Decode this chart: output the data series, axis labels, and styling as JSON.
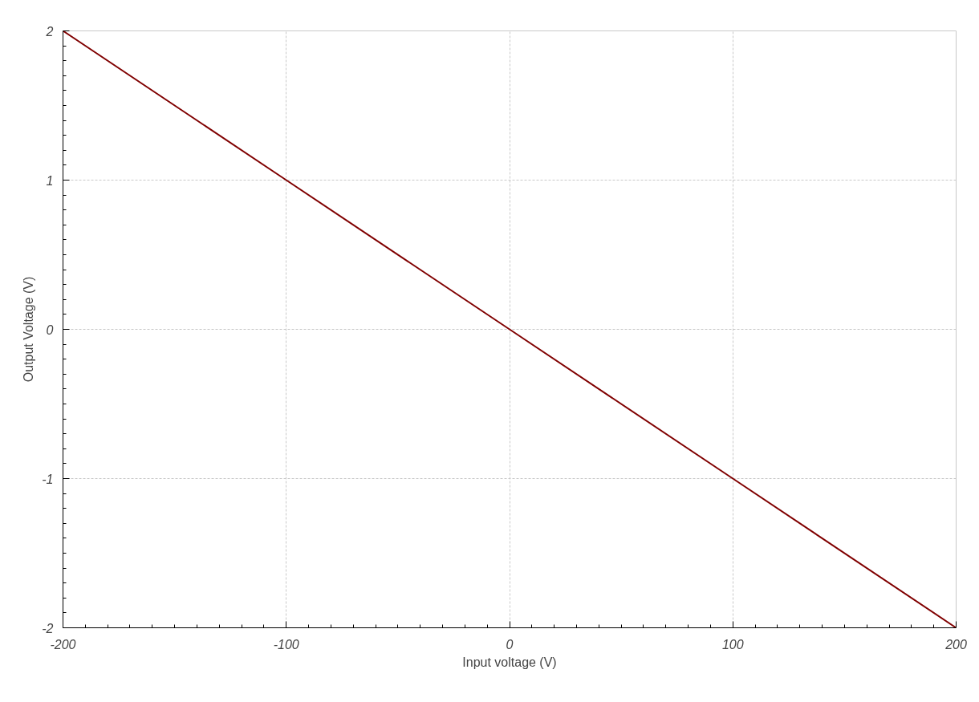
{
  "chart_data": {
    "type": "line",
    "xlabel": "Input voltage (V)",
    "ylabel": "Output Voltage (V)",
    "x": [
      -200,
      -100,
      0,
      100,
      200
    ],
    "series": [
      {
        "color": "#800000",
        "values": [
          2,
          1,
          0,
          -1,
          -2
        ]
      }
    ],
    "xlim": [
      -200,
      200
    ],
    "ylim": [
      -2,
      2
    ],
    "xticks": [
      -200,
      -100,
      0,
      100,
      200
    ],
    "yticks": [
      -2,
      -1,
      0,
      1,
      2
    ],
    "grid": true,
    "line_style": "solid"
  }
}
